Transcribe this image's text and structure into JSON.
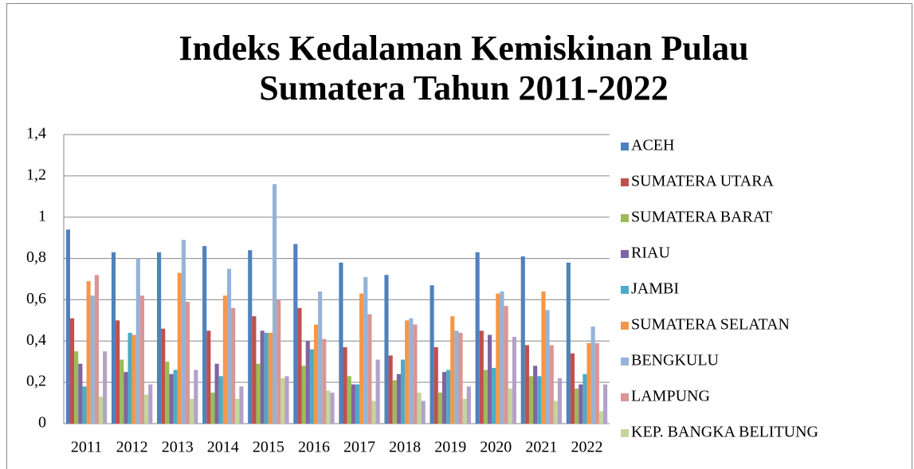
{
  "chart_data": {
    "type": "bar",
    "title": "Indeks Kedalaman Kemiskinan Pulau Sumatera Tahun 2011-2022",
    "categories": [
      "2011",
      "2012",
      "2013",
      "2014",
      "2015",
      "2016",
      "2017",
      "2018",
      "2019",
      "2020",
      "2021",
      "2022"
    ],
    "series": [
      {
        "name": "ACEH",
        "color": "#4F81BD",
        "values": [
          0.94,
          0.83,
          0.83,
          0.86,
          0.84,
          0.87,
          0.78,
          0.72,
          0.67,
          0.83,
          0.81,
          0.78
        ]
      },
      {
        "name": "SUMATERA UTARA",
        "color": "#C0504D",
        "values": [
          0.51,
          0.5,
          0.46,
          0.45,
          0.52,
          0.56,
          0.37,
          0.33,
          0.37,
          0.45,
          0.38,
          0.34
        ]
      },
      {
        "name": "SUMATERA BARAT",
        "color": "#9BBB59",
        "values": [
          0.35,
          0.31,
          0.3,
          0.15,
          0.29,
          0.28,
          0.23,
          0.21,
          0.15,
          0.26,
          0.23,
          0.17
        ]
      },
      {
        "name": "RIAU",
        "color": "#8064A2",
        "values": [
          0.29,
          0.25,
          0.24,
          0.29,
          0.45,
          0.4,
          0.19,
          0.24,
          0.25,
          0.43,
          0.28,
          0.19
        ]
      },
      {
        "name": "JAMBI",
        "color": "#4BACC6",
        "values": [
          0.18,
          0.44,
          0.26,
          0.23,
          0.44,
          0.36,
          0.19,
          0.31,
          0.26,
          0.27,
          0.23,
          0.24
        ]
      },
      {
        "name": "SUMATERA SELATAN",
        "color": "#F79646",
        "values": [
          0.69,
          0.43,
          0.73,
          0.62,
          0.44,
          0.48,
          0.63,
          0.5,
          0.52,
          0.63,
          0.64,
          0.39
        ]
      },
      {
        "name": "BENGKULU",
        "color": "#95B3D7",
        "values": [
          0.62,
          0.8,
          0.89,
          0.75,
          1.16,
          0.64,
          0.71,
          0.51,
          0.45,
          0.64,
          0.55,
          0.47
        ]
      },
      {
        "name": "LAMPUNG",
        "color": "#D99694",
        "values": [
          0.72,
          0.62,
          0.59,
          0.56,
          0.6,
          0.41,
          0.53,
          0.48,
          0.44,
          0.57,
          0.38,
          0.39
        ]
      },
      {
        "name": "KEP. BANGKA BELITUNG",
        "color": "#C3D69B",
        "values": [
          0.13,
          0.14,
          0.12,
          0.12,
          0.22,
          0.16,
          0.11,
          0.15,
          0.12,
          0.17,
          0.11,
          0.06
        ]
      },
      {
        "name": null,
        "color": "#B3A2C7",
        "values": [
          0.35,
          0.19,
          0.26,
          0.18,
          0.23,
          0.15,
          0.31,
          0.11,
          0.18,
          0.42,
          0.22,
          0.19
        ]
      }
    ],
    "ylim": [
      0,
      1.4
    ],
    "yticks": [
      0,
      {
        "value": 0.2,
        "label": "0,2"
      },
      {
        "value": 0.4,
        "label": "0,4"
      },
      {
        "value": 0.6,
        "label": "0,6"
      },
      {
        "value": 0.8,
        "label": "0,8"
      },
      1,
      {
        "value": 1.2,
        "label": "1,2"
      },
      {
        "value": 1.4,
        "label": "1,4"
      }
    ],
    "grid": true,
    "legend": "right"
  }
}
